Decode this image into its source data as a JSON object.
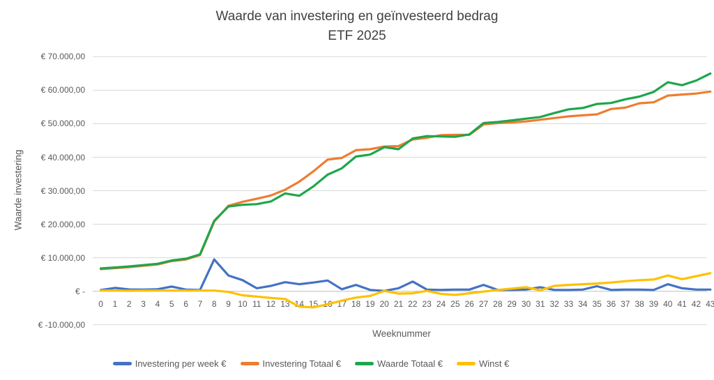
{
  "title": {
    "line1": "Waarde van investering en geïnvesteerd bedrag",
    "line2": "ETF 2025"
  },
  "y_axis": {
    "title": "Waarde investering",
    "tick_values": [
      70000,
      60000,
      50000,
      40000,
      30000,
      20000,
      10000,
      0,
      -10000
    ],
    "tick_labels": [
      "€ 70.000,00",
      "€ 60.000,00",
      "€ 50.000,00",
      "€ 40.000,00",
      "€ 30.000,00",
      "€ 20.000,00",
      "€ 10.000,00",
      "€ -",
      "€ -10.000,00"
    ]
  },
  "x_axis": {
    "title": "Weeknummer",
    "tick_labels": [
      "0",
      "1",
      "2",
      "3",
      "4",
      "5",
      "6",
      "7",
      "8",
      "9",
      "10",
      "11",
      "12",
      "13",
      "14",
      "15",
      "16",
      "17",
      "18",
      "19",
      "20",
      "21",
      "22",
      "23",
      "24",
      "25",
      "26",
      "27",
      "28",
      "29",
      "30",
      "31",
      "32",
      "33",
      "34",
      "35",
      "36",
      "37",
      "38",
      "39",
      "40",
      "41",
      "42",
      "43"
    ]
  },
  "colors": {
    "grid": "#d9d9d9",
    "axis_line": "#bfbfbf",
    "text": "#595959",
    "title_text": "#404040"
  },
  "chart_data": {
    "type": "line",
    "title": "Waarde van investering en geïnvesteerd bedrag — ETF 2025",
    "xlabel": "Weeknummer",
    "ylabel": "Waarde investering",
    "x": [
      0,
      1,
      2,
      3,
      4,
      5,
      6,
      7,
      8,
      9,
      10,
      11,
      12,
      13,
      14,
      15,
      16,
      17,
      18,
      19,
      20,
      21,
      22,
      23,
      24,
      25,
      26,
      27,
      28,
      29,
      30,
      31,
      32,
      33,
      34,
      35,
      36,
      37,
      38,
      39,
      40,
      41,
      42,
      43
    ],
    "ylim": [
      -10000,
      70000
    ],
    "grid": true,
    "legend_position": "bottom",
    "series": [
      {
        "name": "Investering per week €",
        "color": "#4472c4",
        "values": [
          350,
          1000,
          550,
          500,
          600,
          1400,
          500,
          400,
          9500,
          4700,
          3300,
          900,
          1600,
          2700,
          2100,
          2600,
          3200,
          600,
          1900,
          400,
          100,
          900,
          2900,
          500,
          400,
          500,
          500,
          1900,
          400,
          400,
          500,
          1200,
          400,
          400,
          500,
          1500,
          400,
          500,
          500,
          400,
          2100,
          900,
          500,
          500
        ]
      },
      {
        "name": "Investering Totaal €",
        "color": "#ed7d31",
        "values": [
          6600,
          6900,
          7200,
          7600,
          8000,
          9000,
          9500,
          10800,
          20800,
          25500,
          26700,
          27600,
          28600,
          30300,
          32700,
          35800,
          39300,
          39800,
          42100,
          42400,
          43200,
          43300,
          45300,
          45800,
          46600,
          46700,
          46700,
          49800,
          50200,
          50400,
          50700,
          51200,
          51700,
          52200,
          52500,
          52800,
          54400,
          54800,
          56100,
          56400,
          58400,
          58700,
          59000,
          59600
        ]
      },
      {
        "name": "Waarde Totaal €",
        "color": "#1ea64c",
        "values": [
          6800,
          7100,
          7400,
          7800,
          8200,
          9200,
          9700,
          11000,
          21000,
          25300,
          25800,
          26000,
          26800,
          29200,
          28500,
          31300,
          34800,
          36700,
          40200,
          40800,
          43000,
          42400,
          45600,
          46300,
          46200,
          46100,
          46800,
          50200,
          50500,
          51000,
          51500,
          52000,
          53200,
          54300,
          54700,
          55900,
          56200,
          57300,
          58100,
          59500,
          62400,
          61500,
          62900,
          65000
        ]
      },
      {
        "name": "Winst €",
        "color": "#ffc000",
        "values": [
          200,
          200,
          150,
          200,
          200,
          200,
          200,
          200,
          200,
          -200,
          -1200,
          -1600,
          -2000,
          -2300,
          -4600,
          -4800,
          -3900,
          -2800,
          -1900,
          -1400,
          100,
          -700,
          -600,
          100,
          -800,
          -1100,
          -600,
          -100,
          400,
          800,
          1200,
          300,
          1600,
          1900,
          2100,
          2300,
          2600,
          3000,
          3300,
          3500,
          4700,
          3600,
          4500,
          5400
        ]
      }
    ]
  }
}
